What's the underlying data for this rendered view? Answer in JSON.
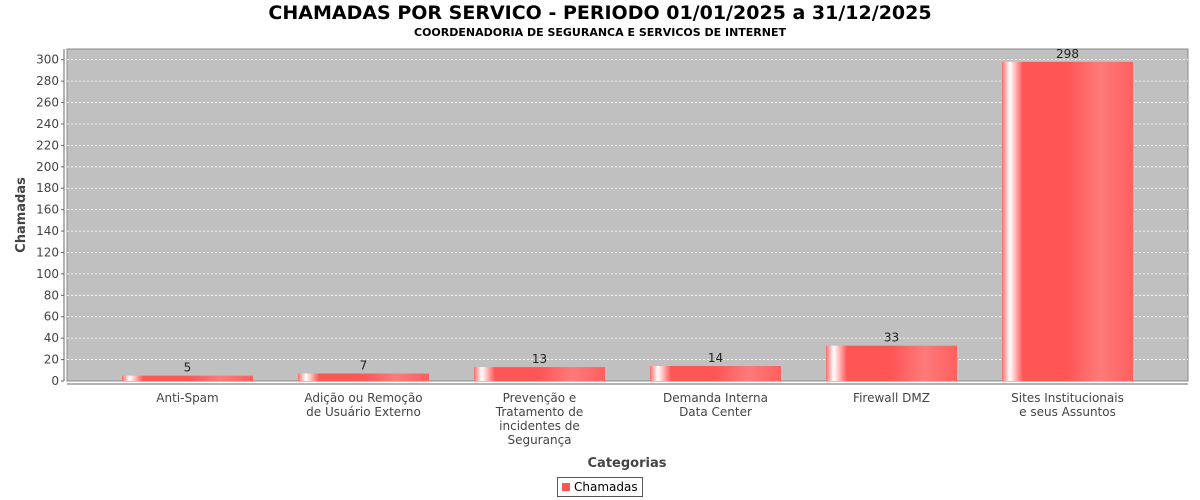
{
  "title": "CHAMADAS POR SERVICO - PERIODO 01/01/2025 a 31/12/2025",
  "subtitle": "COORDENADORIA DE SEGURANCA E SERVICOS DE INTERNET",
  "colors": {
    "plot_bg": "#c0c0c0",
    "bar": "#ff5555",
    "grid": "#ffffff"
  },
  "chart_data": {
    "type": "bar",
    "xlabel": "Categorias",
    "ylabel": "Chamadas",
    "ylim": [
      0,
      310
    ],
    "yticks": [
      0,
      20,
      40,
      60,
      80,
      100,
      120,
      140,
      160,
      180,
      200,
      220,
      240,
      260,
      280,
      300
    ],
    "grid": true,
    "legend_position": "bottom",
    "categories": [
      [
        "Anti-Spam"
      ],
      [
        "Adição ou Remoção",
        "de Usuário Externo"
      ],
      [
        "Prevenção e",
        "Tratamento de",
        "incidentes de",
        "Segurança"
      ],
      [
        "Demanda Interna",
        "Data Center"
      ],
      [
        "Firewall DMZ"
      ],
      [
        "Sites Institucionais",
        "e seus Assuntos"
      ]
    ],
    "series": [
      {
        "name": "Chamadas",
        "values": [
          5,
          7,
          13,
          14,
          33,
          298
        ]
      }
    ]
  }
}
